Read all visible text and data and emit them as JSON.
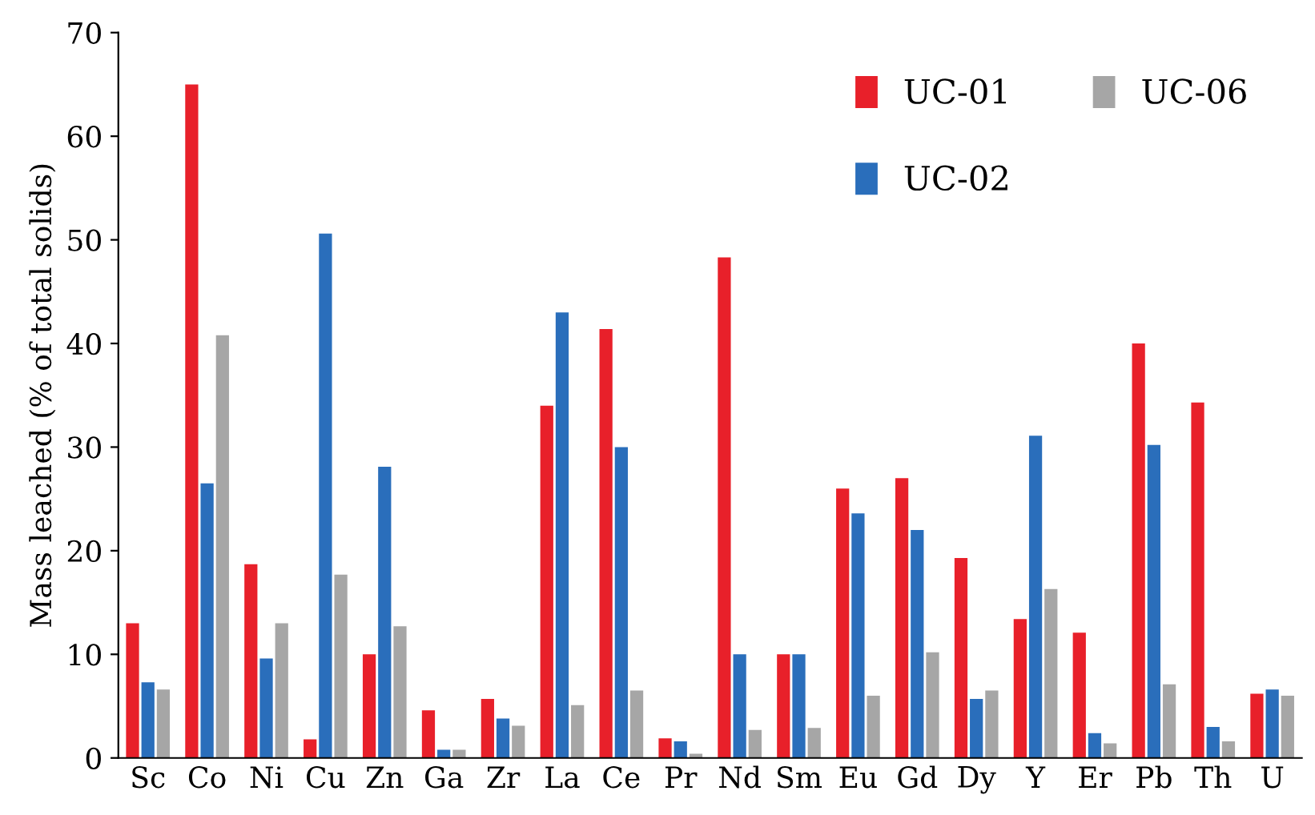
{
  "chart_data": {
    "type": "bar",
    "ylabel": "Mass leached (% of total solids)",
    "categories": [
      "Sc",
      "Co",
      "Ni",
      "Cu",
      "Zn",
      "Ga",
      "Zr",
      "La",
      "Ce",
      "Pr",
      "Nd",
      "Sm",
      "Eu",
      "Gd",
      "Dy",
      "Y",
      "Er",
      "Pb",
      "Th",
      "U"
    ],
    "series": [
      {
        "name": "UC-01",
        "color": "#e8202a",
        "values": [
          13,
          65,
          18.7,
          1.8,
          10,
          4.6,
          5.7,
          34,
          41.4,
          1.9,
          48.3,
          10,
          26,
          27,
          19.3,
          13.4,
          12.1,
          40,
          34.3,
          6.2
        ]
      },
      {
        "name": "UC-02",
        "color": "#2a6ebb",
        "values": [
          7.3,
          26.5,
          9.6,
          50.6,
          28.1,
          0.8,
          3.8,
          43,
          30,
          1.6,
          10,
          10,
          23.6,
          22,
          5.7,
          31.1,
          2.4,
          30.2,
          3,
          6.6
        ]
      },
      {
        "name": "UC-06",
        "color": "#a6a6a6",
        "values": [
          6.6,
          40.8,
          13,
          17.7,
          12.7,
          0.8,
          3.1,
          5.1,
          6.5,
          0.4,
          2.7,
          2.9,
          6,
          10.2,
          6.5,
          16.3,
          1.4,
          7.1,
          1.6,
          6
        ]
      }
    ],
    "ylim": [
      0,
      70
    ],
    "yticks": [
      0,
      10,
      20,
      30,
      40,
      50,
      60,
      70
    ],
    "grid": false,
    "legend": "top right"
  }
}
